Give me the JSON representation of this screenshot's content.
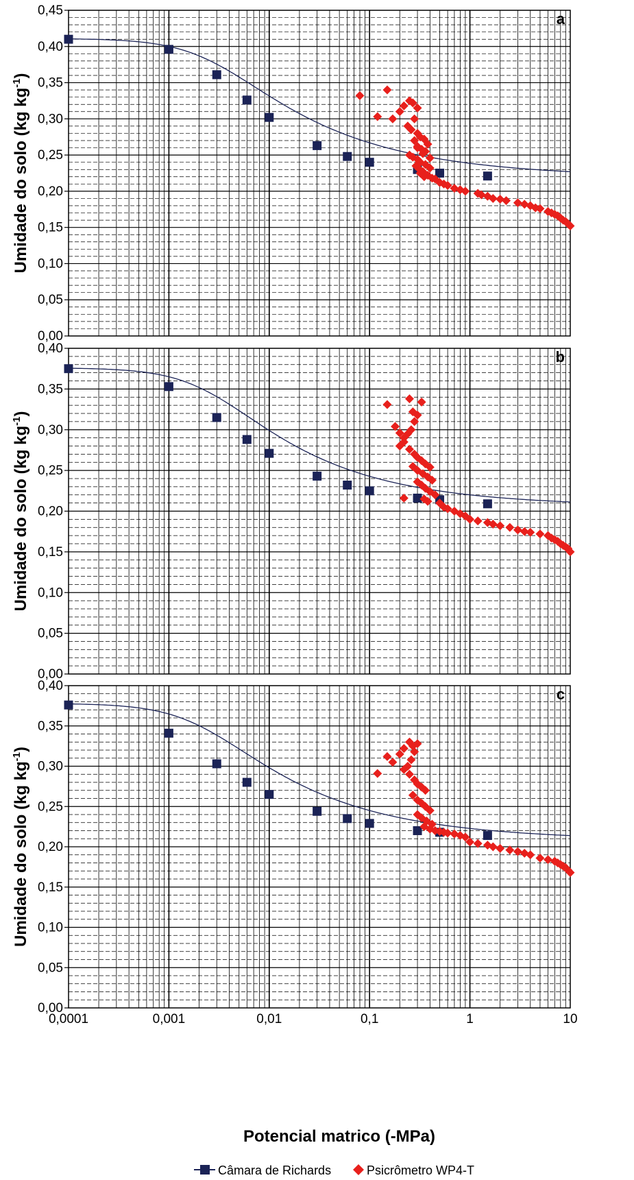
{
  "colors": {
    "richards": "#1b2356",
    "psychrometer": "#e8201c",
    "grid": "#000000"
  },
  "legend": {
    "richards_label": "Câmara de Richards",
    "psychrometer_label": "Psicrômetro WP4-T"
  },
  "chart_data": [
    {
      "type": "scatter",
      "panel_label": "a",
      "xlabel": "",
      "ylabel": "Umidade do solo (kg kg-1)",
      "x_scale": "log",
      "xlim": [
        0.0001,
        10
      ],
      "ylim": [
        0.0,
        0.45
      ],
      "y_ticks": [
        "0,00",
        "0,05",
        "0,10",
        "0,15",
        "0,20",
        "0,25",
        "0,30",
        "0,35",
        "0,40",
        "0,45"
      ],
      "y_tick_values": [
        0.0,
        0.05,
        0.1,
        0.15,
        0.2,
        0.25,
        0.3,
        0.35,
        0.4,
        0.45
      ],
      "grid": true,
      "series": [
        {
          "name": "Câmara de Richards",
          "marker": "square",
          "x": [
            0.0001,
            0.001,
            0.003,
            0.006,
            0.01,
            0.03,
            0.06,
            0.1,
            0.3,
            0.5,
            1.5
          ],
          "y": [
            0.41,
            0.396,
            0.361,
            0.326,
            0.302,
            0.263,
            0.248,
            0.24,
            0.23,
            0.225,
            0.221
          ]
        },
        {
          "name": "Psicrômetro WP4-T",
          "marker": "diamond",
          "x": [
            0.08,
            0.12,
            0.15,
            0.17,
            0.2,
            0.22,
            0.25,
            0.27,
            0.3,
            0.28,
            0.24,
            0.26,
            0.3,
            0.32,
            0.35,
            0.38,
            0.28,
            0.3,
            0.33,
            0.36,
            0.25,
            0.27,
            0.3,
            0.32,
            0.36,
            0.4,
            0.29,
            0.31,
            0.34,
            0.38,
            0.42,
            0.32,
            0.35,
            0.45,
            0.3,
            0.34,
            0.4,
            0.5,
            0.55,
            0.6,
            0.7,
            0.8,
            0.9,
            1.2,
            1.3,
            1.5,
            1.7,
            2.0,
            2.3,
            3.0,
            3.5,
            4.0,
            4.5,
            5.0,
            6.0,
            6.5,
            7.0,
            7.5,
            8.0,
            8.5,
            9.0,
            9.5,
            10.0
          ],
          "y": [
            0.332,
            0.303,
            0.34,
            0.3,
            0.31,
            0.318,
            0.325,
            0.322,
            0.315,
            0.3,
            0.29,
            0.285,
            0.28,
            0.275,
            0.272,
            0.265,
            0.27,
            0.262,
            0.258,
            0.255,
            0.25,
            0.247,
            0.244,
            0.24,
            0.237,
            0.232,
            0.235,
            0.231,
            0.227,
            0.222,
            0.218,
            0.225,
            0.22,
            0.217,
            0.26,
            0.252,
            0.246,
            0.212,
            0.21,
            0.208,
            0.204,
            0.202,
            0.2,
            0.197,
            0.195,
            0.193,
            0.19,
            0.189,
            0.187,
            0.184,
            0.182,
            0.18,
            0.177,
            0.176,
            0.172,
            0.17,
            0.168,
            0.166,
            0.163,
            0.16,
            0.158,
            0.155,
            0.152
          ]
        }
      ],
      "fit_curve": {
        "theta_r": 0.219,
        "theta_s": 0.411,
        "alpha": 350,
        "n": 1.39,
        "x_end": 10
      }
    },
    {
      "type": "scatter",
      "panel_label": "b",
      "xlabel": "",
      "ylabel": "Umidade do solo (kg kg-1)",
      "x_scale": "log",
      "xlim": [
        0.0001,
        10
      ],
      "ylim": [
        0.0,
        0.4
      ],
      "y_ticks": [
        "0,00",
        "0,05",
        "0,10",
        "0,15",
        "0,20",
        "0,25",
        "0,30",
        "0,35",
        "0,40"
      ],
      "y_tick_values": [
        0.0,
        0.05,
        0.1,
        0.15,
        0.2,
        0.25,
        0.3,
        0.35,
        0.4
      ],
      "grid": true,
      "series": [
        {
          "name": "Câmara de Richards",
          "marker": "square",
          "x": [
            0.0001,
            0.001,
            0.003,
            0.006,
            0.01,
            0.03,
            0.06,
            0.1,
            0.3,
            0.5,
            1.5
          ],
          "y": [
            0.375,
            0.353,
            0.315,
            0.288,
            0.271,
            0.243,
            0.232,
            0.225,
            0.216,
            0.214,
            0.209
          ]
        },
        {
          "name": "Psicrômetro WP4-T",
          "marker": "diamond",
          "x": [
            0.15,
            0.18,
            0.2,
            0.22,
            0.25,
            0.27,
            0.3,
            0.33,
            0.28,
            0.26,
            0.24,
            0.22,
            0.2,
            0.25,
            0.28,
            0.3,
            0.33,
            0.36,
            0.4,
            0.27,
            0.3,
            0.34,
            0.38,
            0.42,
            0.3,
            0.33,
            0.36,
            0.4,
            0.45,
            0.35,
            0.38,
            0.22,
            0.5,
            0.55,
            0.6,
            0.7,
            0.8,
            0.9,
            1.0,
            1.2,
            1.5,
            1.7,
            2.0,
            2.5,
            3.0,
            3.5,
            4.0,
            5.0,
            6.0,
            6.5,
            7.0,
            7.5,
            8.0,
            8.5,
            9.0,
            9.5,
            10.0
          ],
          "y": [
            0.331,
            0.304,
            0.296,
            0.29,
            0.338,
            0.322,
            0.318,
            0.334,
            0.31,
            0.3,
            0.295,
            0.285,
            0.28,
            0.276,
            0.27,
            0.266,
            0.262,
            0.258,
            0.254,
            0.255,
            0.25,
            0.246,
            0.242,
            0.238,
            0.236,
            0.232,
            0.228,
            0.224,
            0.22,
            0.215,
            0.212,
            0.216,
            0.21,
            0.205,
            0.203,
            0.2,
            0.197,
            0.194,
            0.19,
            0.188,
            0.186,
            0.184,
            0.182,
            0.18,
            0.177,
            0.175,
            0.174,
            0.172,
            0.17,
            0.167,
            0.165,
            0.163,
            0.16,
            0.158,
            0.156,
            0.154,
            0.15
          ]
        }
      ],
      "fit_curve": {
        "theta_r": 0.206,
        "theta_s": 0.376,
        "alpha": 380,
        "n": 1.42,
        "x_end": 10
      }
    },
    {
      "type": "scatter",
      "panel_label": "c",
      "xlabel": "Potencial matrico (-MPa)",
      "ylabel": "Umidade do solo (kg kg-1)",
      "x_scale": "log",
      "xlim": [
        0.0001,
        10
      ],
      "ylim": [
        0.0,
        0.4
      ],
      "x_ticks": [
        "0,0001",
        "0,001",
        "0,01",
        "0,1",
        "1",
        "10"
      ],
      "x_tick_values": [
        0.0001,
        0.001,
        0.01,
        0.1,
        1,
        10
      ],
      "y_ticks": [
        "0,00",
        "0,05",
        "0,10",
        "0,15",
        "0,20",
        "0,25",
        "0,30",
        "0,35",
        "0,40"
      ],
      "y_tick_values": [
        0.0,
        0.05,
        0.1,
        0.15,
        0.2,
        0.25,
        0.3,
        0.35,
        0.4
      ],
      "grid": true,
      "series": [
        {
          "name": "Câmara de Richards",
          "marker": "square",
          "x": [
            0.0001,
            0.001,
            0.003,
            0.006,
            0.01,
            0.03,
            0.06,
            0.1,
            0.3,
            0.5,
            1.5
          ],
          "y": [
            0.376,
            0.341,
            0.303,
            0.28,
            0.265,
            0.244,
            0.235,
            0.229,
            0.22,
            0.218,
            0.214
          ]
        },
        {
          "name": "Psicrômetro WP4-T",
          "marker": "diamond",
          "x": [
            0.12,
            0.15,
            0.17,
            0.2,
            0.22,
            0.25,
            0.27,
            0.3,
            0.28,
            0.26,
            0.24,
            0.22,
            0.25,
            0.28,
            0.3,
            0.33,
            0.36,
            0.27,
            0.3,
            0.33,
            0.36,
            0.4,
            0.3,
            0.33,
            0.37,
            0.42,
            0.35,
            0.4,
            0.45,
            0.5,
            0.55,
            0.6,
            0.7,
            0.8,
            0.9,
            1.0,
            1.2,
            1.5,
            1.7,
            2.0,
            2.5,
            3.0,
            3.5,
            4.0,
            5.0,
            6.0,
            7.0,
            7.5,
            8.0,
            8.5,
            9.0,
            9.5,
            10.0
          ],
          "y": [
            0.291,
            0.312,
            0.305,
            0.315,
            0.322,
            0.33,
            0.325,
            0.328,
            0.318,
            0.308,
            0.3,
            0.296,
            0.29,
            0.283,
            0.278,
            0.274,
            0.27,
            0.264,
            0.258,
            0.254,
            0.25,
            0.245,
            0.24,
            0.236,
            0.232,
            0.228,
            0.225,
            0.222,
            0.22,
            0.219,
            0.218,
            0.217,
            0.216,
            0.214,
            0.212,
            0.206,
            0.204,
            0.202,
            0.2,
            0.198,
            0.196,
            0.194,
            0.192,
            0.19,
            0.186,
            0.184,
            0.182,
            0.18,
            0.178,
            0.176,
            0.174,
            0.171,
            0.168
          ]
        }
      ],
      "fit_curve": {
        "theta_r": 0.208,
        "theta_s": 0.378,
        "alpha": 450,
        "n": 1.4,
        "x_end": 10
      }
    }
  ]
}
